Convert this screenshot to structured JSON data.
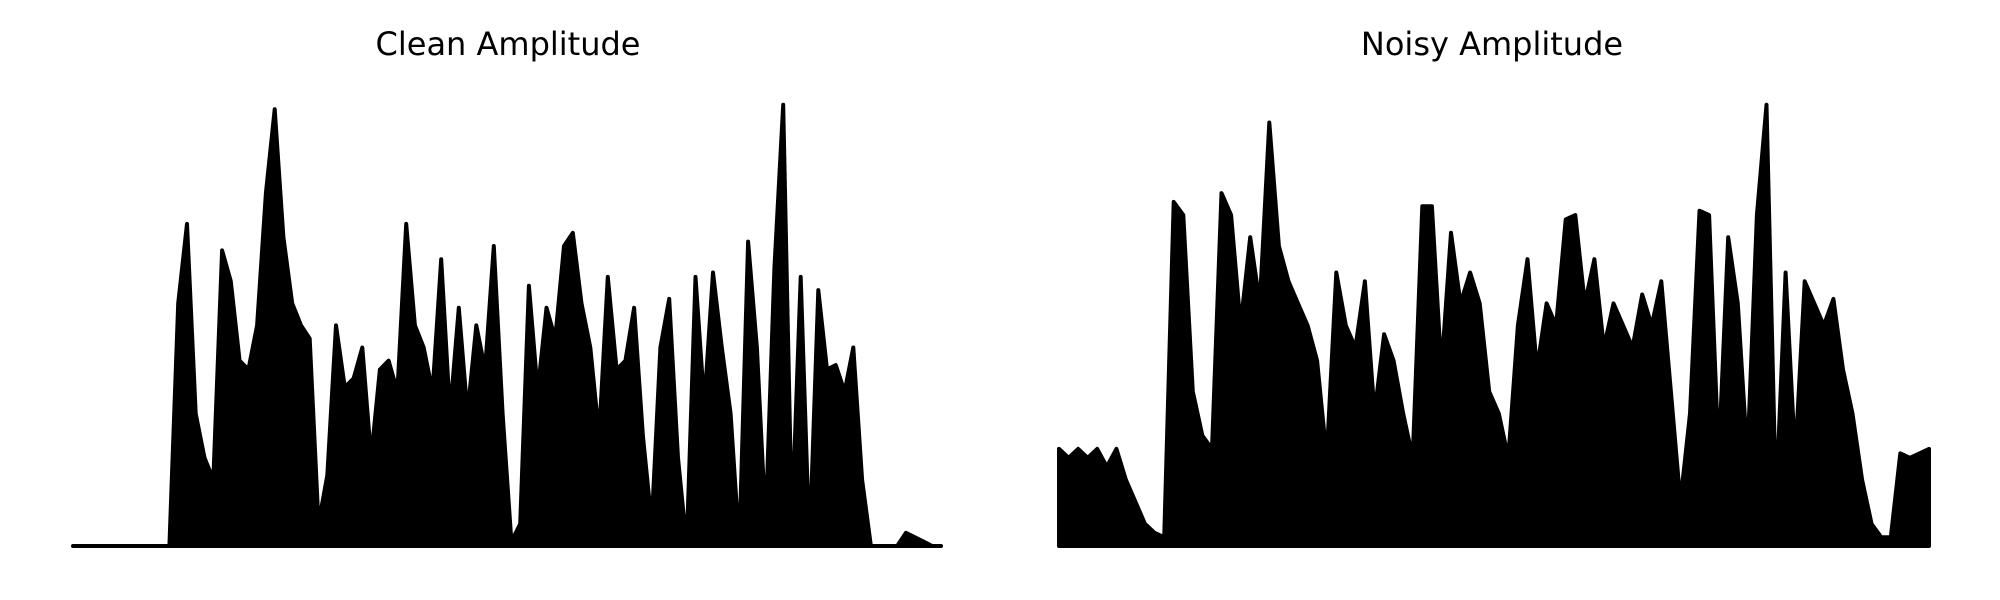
{
  "chart_data": [
    {
      "type": "line",
      "title": "Clean Amplitude",
      "color": "#000000",
      "ylim": [
        0,
        1.02
      ],
      "values": [
        0,
        0,
        0,
        0,
        0,
        0,
        0,
        0,
        0,
        0,
        0,
        0,
        0.55,
        0.73,
        0.3,
        0.2,
        0.15,
        0.67,
        0.6,
        0.42,
        0.4,
        0.5,
        0.8,
        0.99,
        0.7,
        0.55,
        0.5,
        0.47,
        0.05,
        0.16,
        0.5,
        0.36,
        0.38,
        0.45,
        0.2,
        0.4,
        0.42,
        0.35,
        0.73,
        0.5,
        0.45,
        0.35,
        0.65,
        0.3,
        0.54,
        0.3,
        0.5,
        0.4,
        0.68,
        0.3,
        0.01,
        0.05,
        0.59,
        0.35,
        0.54,
        0.47,
        0.68,
        0.71,
        0.55,
        0.45,
        0.25,
        0.61,
        0.4,
        0.42,
        0.54,
        0.25,
        0.05,
        0.45,
        0.56,
        0.2,
        0,
        0.61,
        0.32,
        0.62,
        0.45,
        0.3,
        0,
        0.69,
        0.45,
        0.05,
        0.63,
        1.0,
        0.05,
        0.61,
        0,
        0.58,
        0.4,
        0.41,
        0.35,
        0.45,
        0.15,
        0,
        0,
        0,
        0,
        0.03,
        0.02,
        0.01,
        0,
        0
      ]
    },
    {
      "type": "line",
      "title": "Noisy Amplitude",
      "color": "#000000",
      "ylim": [
        0,
        1.02
      ],
      "values": [
        0.22,
        0.2,
        0.22,
        0.2,
        0.22,
        0.18,
        0.22,
        0.15,
        0.1,
        0.05,
        0.03,
        0.02,
        0.78,
        0.75,
        0.35,
        0.25,
        0.22,
        0.8,
        0.75,
        0.5,
        0.7,
        0.55,
        0.96,
        0.68,
        0.6,
        0.55,
        0.5,
        0.42,
        0.2,
        0.62,
        0.5,
        0.45,
        0.6,
        0.3,
        0.48,
        0.42,
        0.3,
        0.2,
        0.77,
        0.77,
        0.4,
        0.71,
        0.55,
        0.62,
        0.55,
        0.35,
        0.3,
        0.2,
        0.5,
        0.65,
        0.4,
        0.55,
        0.5,
        0.74,
        0.75,
        0.55,
        0.65,
        0.45,
        0.55,
        0.5,
        0.45,
        0.57,
        0.5,
        0.6,
        0.35,
        0.1,
        0.3,
        0.76,
        0.75,
        0.2,
        0.7,
        0.55,
        0.2,
        0.75,
        1.0,
        0.1,
        0.62,
        0.2,
        0.6,
        0.55,
        0.5,
        0.56,
        0.4,
        0.3,
        0.15,
        0.05,
        0.02,
        0.02,
        0.21,
        0.2,
        0.21,
        0.22
      ]
    }
  ]
}
